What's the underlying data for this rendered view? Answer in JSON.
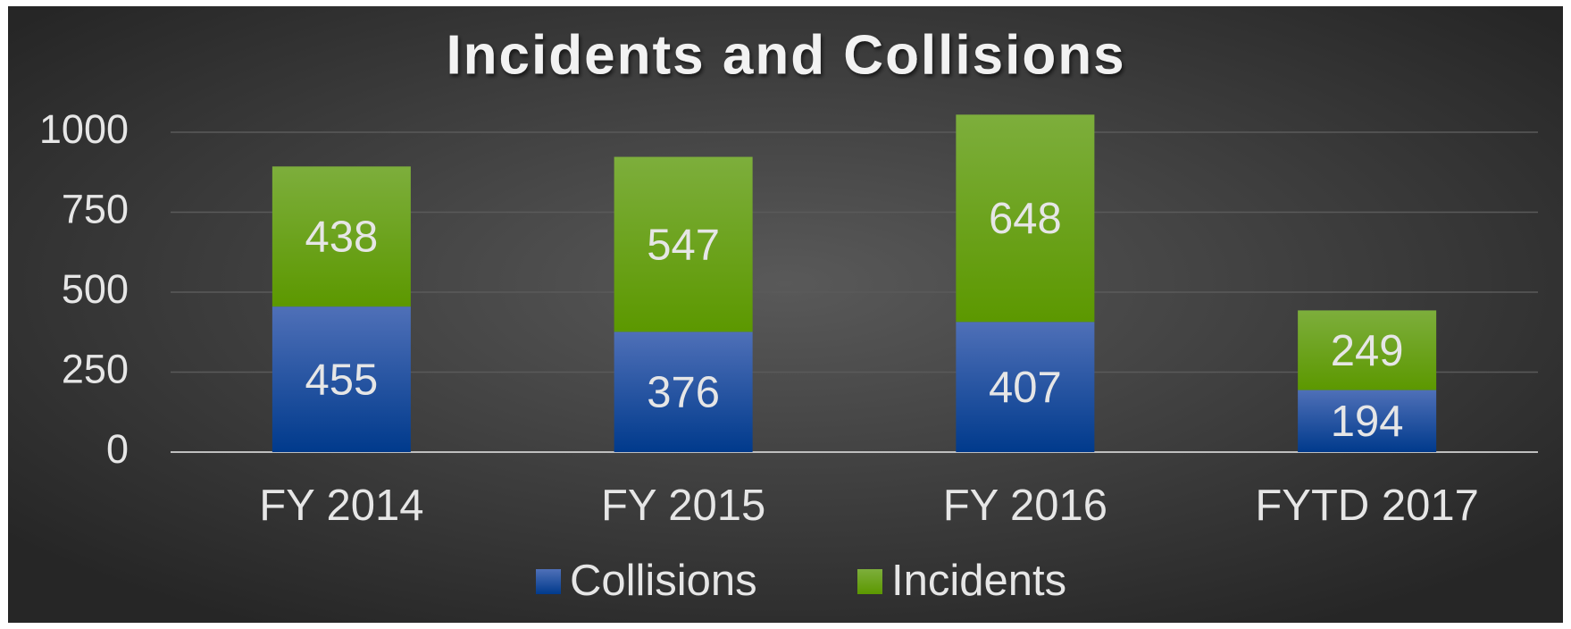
{
  "chart_data": {
    "type": "stacked_bar",
    "title": "Incidents and Collisions",
    "categories": [
      "FY 2014",
      "FY 2015",
      "FY 2016",
      "FYTD 2017"
    ],
    "series": [
      {
        "name": "Collisions",
        "color": "#1a4aa0",
        "values": [
          455,
          376,
          407,
          194
        ]
      },
      {
        "name": "Incidents",
        "color": "#66a000",
        "values": [
          438,
          547,
          648,
          249
        ]
      }
    ],
    "ylim": [
      0,
      1000
    ],
    "yticks": [
      0,
      250,
      500,
      750,
      1000
    ],
    "grid": true,
    "legend": "bottom"
  }
}
